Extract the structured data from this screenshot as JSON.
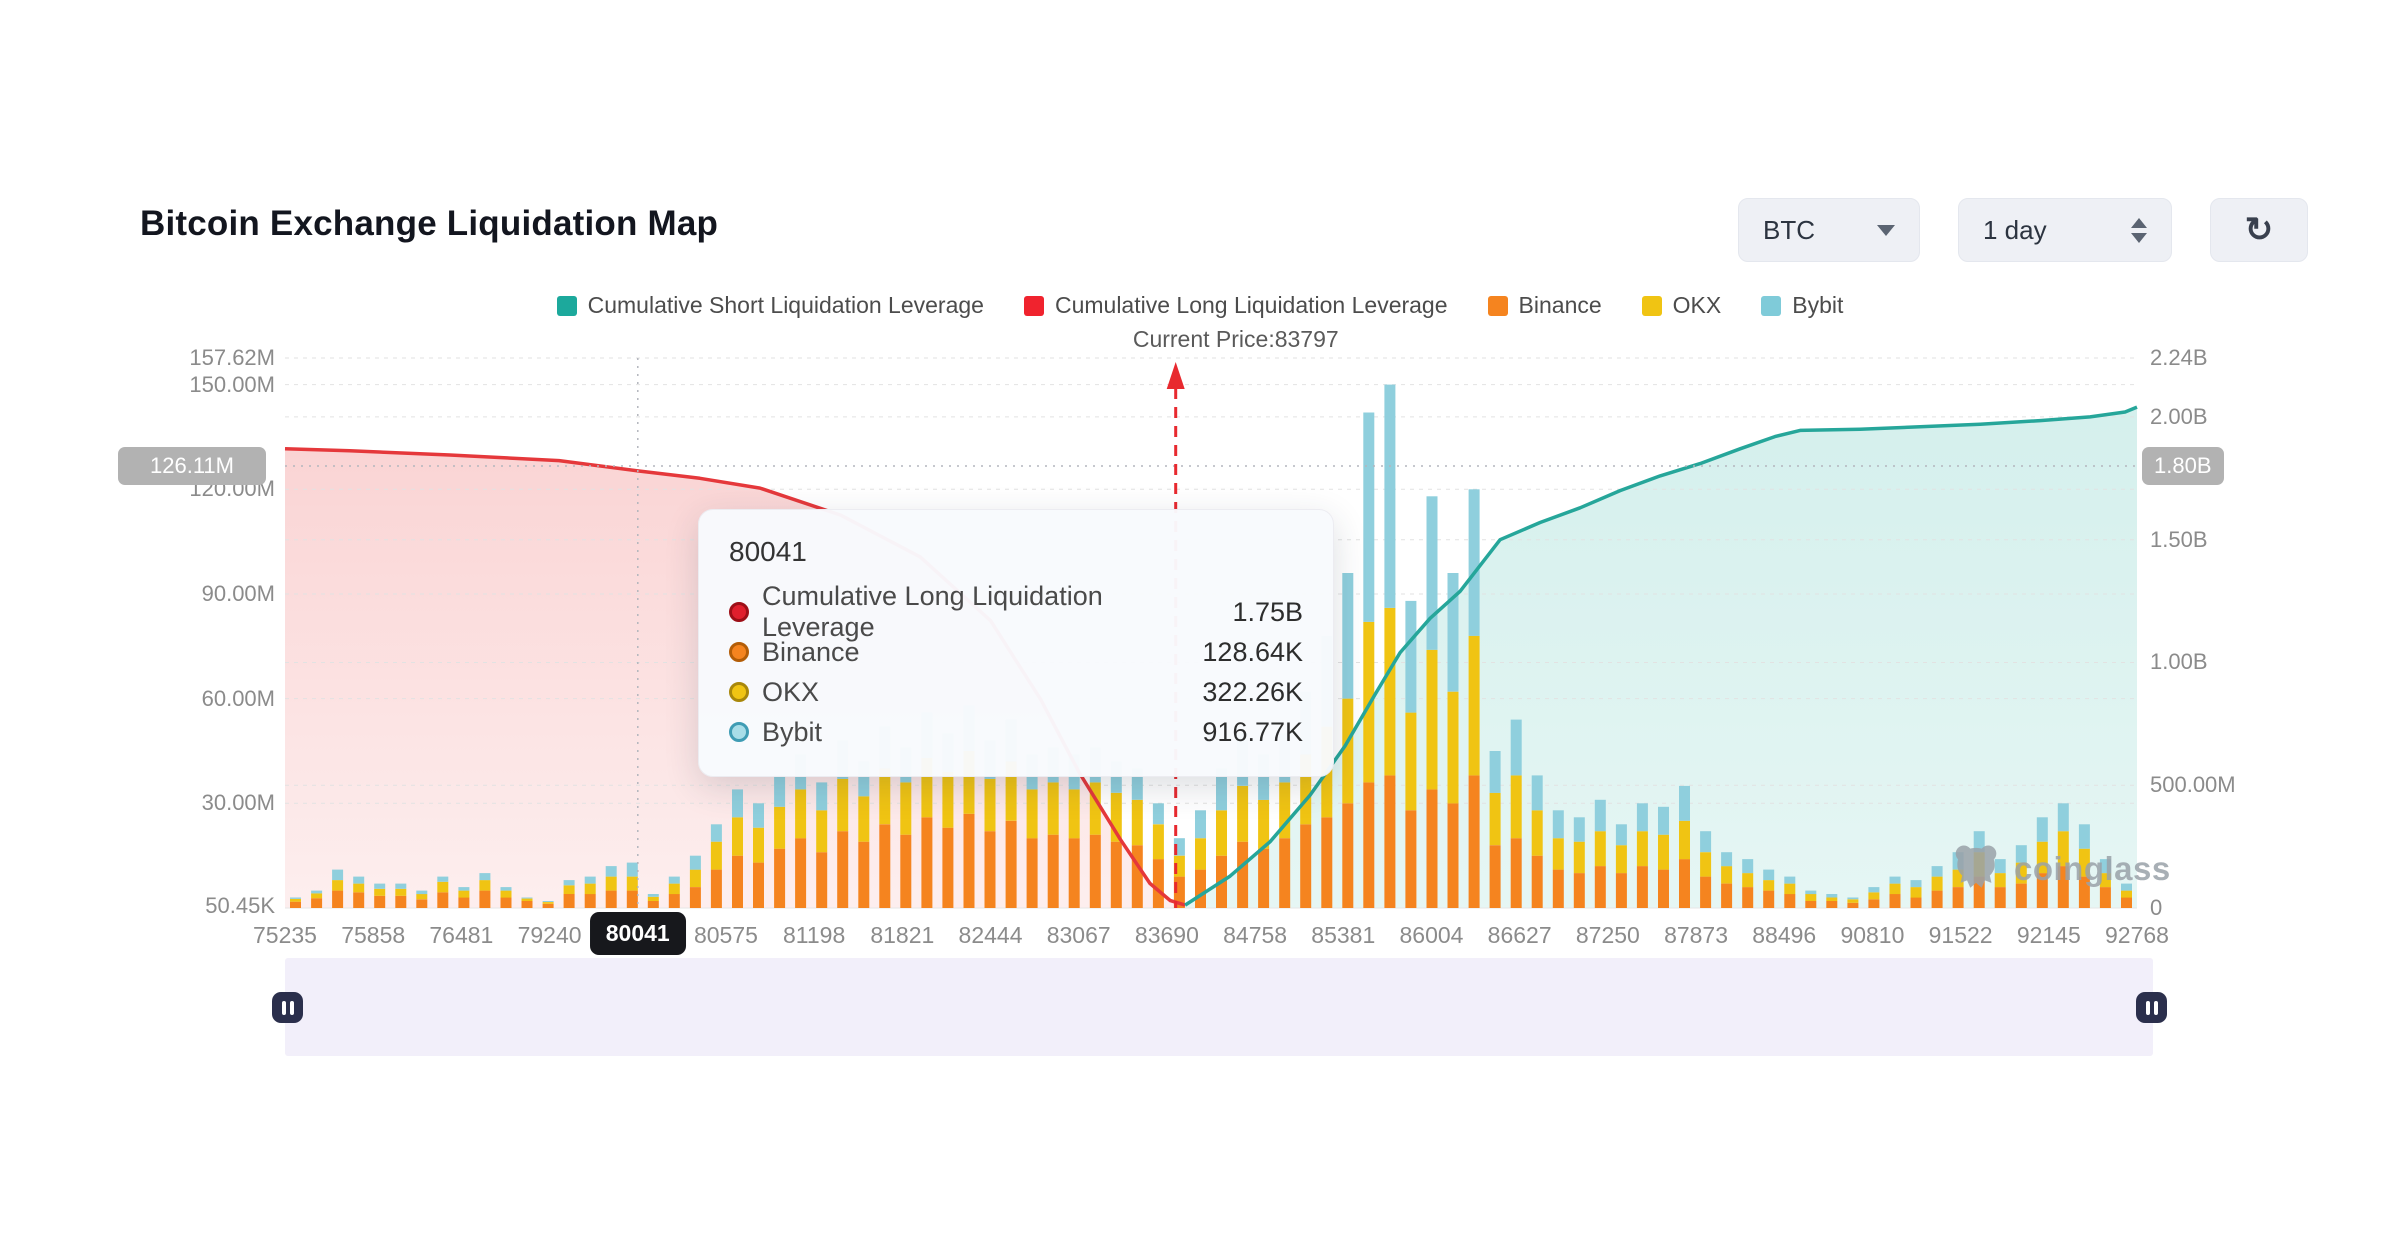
{
  "header": {
    "title": "Bitcoin Exchange Liquidation Map",
    "symbol_select": "BTC",
    "interval_select": "1 day",
    "refresh_icon": "↻"
  },
  "legend": {
    "items": [
      {
        "label": "Cumulative Short Liquidation Leverage",
        "color": "#1ca99c"
      },
      {
        "label": "Cumulative Long Liquidation Leverage",
        "color": "#f0232e"
      },
      {
        "label": "Binance",
        "color": "#f5841f"
      },
      {
        "label": "OKX",
        "color": "#f0c413"
      },
      {
        "label": "Bybit",
        "color": "#7fcbd9"
      }
    ],
    "current_price_label": "Current Price:83797"
  },
  "tooltip": {
    "title": "80041",
    "rows": [
      {
        "label": "Cumulative Long Liquidation Leverage",
        "value": "1.75B",
        "color": "#e01f2d",
        "ring": "#9d0f17"
      },
      {
        "label": "Binance",
        "value": "128.64K",
        "color": "#f5841f",
        "ring": "#b35d07"
      },
      {
        "label": "OKX",
        "value": "322.26K",
        "color": "#f0c413",
        "ring": "#a8870a"
      },
      {
        "label": "Bybit",
        "value": "916.77K",
        "color": "#a8dde8",
        "ring": "#3f9cb4"
      }
    ]
  },
  "crosshair": {
    "x_label": "80041",
    "x_index": 4,
    "left_label": "126.11M",
    "right_label": "1.80B",
    "y_value_b": 1.8
  },
  "price_line": {
    "x_index": 10.1,
    "label": "Current Price:83797"
  },
  "watermark": {
    "text": "coinglass"
  },
  "chart_data": {
    "type": "mixed-bar-line",
    "x_ticks": [
      "75235",
      "75858",
      "76481",
      "79240",
      "80041",
      "80575",
      "81198",
      "81821",
      "82444",
      "83067",
      "83690",
      "84758",
      "85381",
      "86004",
      "86627",
      "87250",
      "87873",
      "88496",
      "90810",
      "91522",
      "92145",
      "92768"
    ],
    "left_axis": {
      "unit": "M",
      "max": 157.62,
      "labels": [
        {
          "label": "157.62M",
          "v": 157.62
        },
        {
          "label": "150.00M",
          "v": 150
        },
        {
          "label": "120.00M",
          "v": 120
        },
        {
          "label": "90.00M",
          "v": 90
        },
        {
          "label": "60.00M",
          "v": 60
        },
        {
          "label": "30.00M",
          "v": 30
        },
        {
          "label": "50.45K",
          "v": 0.5
        }
      ]
    },
    "right_axis": {
      "unit": "B",
      "max": 2.24,
      "labels": [
        {
          "label": "2.24B",
          "v": 2.24
        },
        {
          "label": "2.00B",
          "v": 2.0
        },
        {
          "label": "1.50B",
          "v": 1.5
        },
        {
          "label": "1.00B",
          "v": 1.0
        },
        {
          "label": "500.00M",
          "v": 0.5
        },
        {
          "label": "0",
          "v": 0
        }
      ]
    },
    "gridlines_left_m": [
      157.62,
      150,
      120,
      90,
      60,
      30
    ],
    "gridlines_right_b": [
      2.0,
      1.5,
      1.0,
      0.5
    ],
    "bars": {
      "stack_order": [
        "Binance",
        "OKX",
        "Bybit"
      ],
      "colors": {
        "Binance": "#f5841f",
        "OKX": "#f0c413",
        "Bybit": "#8fcfdd"
      },
      "unit": "M",
      "values": [
        [
          1.8,
          0.8,
          0.4
        ],
        [
          2.8,
          1.4,
          0.8
        ],
        [
          5,
          3,
          3
        ],
        [
          4.5,
          2.5,
          2
        ],
        [
          3.5,
          2,
          1.5
        ],
        [
          3.5,
          2,
          1.5
        ],
        [
          2.5,
          1.5,
          1
        ],
        [
          4.5,
          3,
          1.5
        ],
        [
          3,
          2,
          1
        ],
        [
          5,
          3,
          2
        ],
        [
          3,
          2,
          1
        ],
        [
          2,
          0.7,
          0.3
        ],
        [
          1.2,
          0.5,
          0.3
        ],
        [
          4,
          2.5,
          1.5
        ],
        [
          4,
          3,
          2
        ],
        [
          5,
          4,
          3
        ],
        [
          5,
          4,
          4
        ],
        [
          2,
          1.2,
          0.8
        ],
        [
          4,
          3,
          2
        ],
        [
          6,
          5,
          4
        ],
        [
          11,
          8,
          5
        ],
        [
          15,
          11,
          8
        ],
        [
          13,
          10,
          7
        ],
        [
          17,
          12,
          9
        ],
        [
          20,
          14,
          10
        ],
        [
          16,
          12,
          8
        ],
        [
          22,
          15,
          11
        ],
        [
          19,
          13,
          10
        ],
        [
          24,
          16,
          12
        ],
        [
          21,
          15,
          10
        ],
        [
          26,
          17,
          13
        ],
        [
          23,
          16,
          11
        ],
        [
          27,
          18,
          13
        ],
        [
          22,
          15,
          11
        ],
        [
          25,
          17,
          12
        ],
        [
          20,
          14,
          10
        ],
        [
          21,
          15,
          10
        ],
        [
          20,
          14,
          10
        ],
        [
          21,
          15,
          10
        ],
        [
          19,
          14,
          9
        ],
        [
          18,
          13,
          9
        ],
        [
          14,
          10,
          6
        ],
        [
          9,
          6,
          5
        ],
        [
          11,
          9,
          8
        ],
        [
          15,
          13,
          12
        ],
        [
          19,
          16,
          15
        ],
        [
          17,
          14,
          13
        ],
        [
          20,
          16,
          14
        ],
        [
          24,
          20,
          18
        ],
        [
          26,
          26,
          26
        ],
        [
          30,
          30,
          36
        ],
        [
          36,
          46,
          60
        ],
        [
          38,
          48,
          64
        ],
        [
          28,
          28,
          32
        ],
        [
          34,
          40,
          44
        ],
        [
          30,
          32,
          34
        ],
        [
          38,
          40,
          42
        ],
        [
          18,
          15,
          12
        ],
        [
          20,
          18,
          16
        ],
        [
          15,
          13,
          10
        ],
        [
          11,
          9,
          8
        ],
        [
          10,
          9,
          7
        ],
        [
          12,
          10,
          9
        ],
        [
          10,
          8,
          6
        ],
        [
          12,
          10,
          8
        ],
        [
          11,
          10,
          8
        ],
        [
          14,
          11,
          10
        ],
        [
          9,
          7,
          6
        ],
        [
          7,
          5,
          4
        ],
        [
          6,
          4,
          4
        ],
        [
          5,
          3,
          3
        ],
        [
          4,
          3,
          2
        ],
        [
          2,
          2,
          1
        ],
        [
          2,
          1,
          1
        ],
        [
          1.5,
          1,
          0.5
        ],
        [
          2.5,
          2,
          1.5
        ],
        [
          4,
          3,
          2
        ],
        [
          3,
          3,
          2
        ],
        [
          5,
          4,
          3
        ],
        [
          6,
          5,
          5
        ],
        [
          9,
          7,
          6
        ],
        [
          6,
          4,
          4
        ],
        [
          7,
          6,
          5
        ],
        [
          10,
          9,
          7
        ],
        [
          12,
          10,
          8
        ],
        [
          9,
          8,
          7
        ],
        [
          6,
          4,
          4
        ],
        [
          3,
          2,
          2
        ]
      ]
    },
    "long_line": {
      "name": "Cumulative Long Liquidation Leverage",
      "color": "#e5383b",
      "fill": "#f6caca",
      "axis": "right_B",
      "points": [
        [
          0,
          1.87
        ],
        [
          0.035,
          1.862
        ],
        [
          0.089,
          1.845
        ],
        [
          0.148,
          1.822
        ],
        [
          0.1905,
          1.78
        ],
        [
          0.224,
          1.75
        ],
        [
          0.2565,
          1.71
        ],
        [
          0.3,
          1.6
        ],
        [
          0.343,
          1.43
        ],
        [
          0.381,
          1.17
        ],
        [
          0.408,
          0.85
        ],
        [
          0.429,
          0.55
        ],
        [
          0.451,
          0.28
        ],
        [
          0.467,
          0.1
        ],
        [
          0.478,
          0.03
        ],
        [
          0.486,
          0.012
        ]
      ]
    },
    "short_line": {
      "name": "Cumulative Short Liquidation Leverage",
      "color": "#26a69a",
      "fill": "#ddf2ee",
      "axis": "right_B",
      "points": [
        [
          0.486,
          0.012
        ],
        [
          0.5103,
          0.13
        ],
        [
          0.5319,
          0.27
        ],
        [
          0.5535,
          0.46
        ],
        [
          0.5724,
          0.66
        ],
        [
          0.5886,
          0.87
        ],
        [
          0.6021,
          1.04
        ],
        [
          0.6183,
          1.18
        ],
        [
          0.6345,
          1.29
        ],
        [
          0.6561,
          1.5
        ],
        [
          0.6777,
          1.57
        ],
        [
          0.6993,
          1.63
        ],
        [
          0.7209,
          1.7
        ],
        [
          0.7425,
          1.76
        ],
        [
          0.7641,
          1.81
        ],
        [
          0.7857,
          1.87
        ],
        [
          0.8045,
          1.92
        ],
        [
          0.8181,
          1.945
        ],
        [
          0.8505,
          1.95
        ],
        [
          0.8829,
          1.96
        ],
        [
          0.9153,
          1.97
        ],
        [
          0.9477,
          1.985
        ],
        [
          0.9747,
          2.0
        ],
        [
          0.9936,
          2.02
        ],
        [
          1,
          2.04
        ]
      ]
    }
  }
}
